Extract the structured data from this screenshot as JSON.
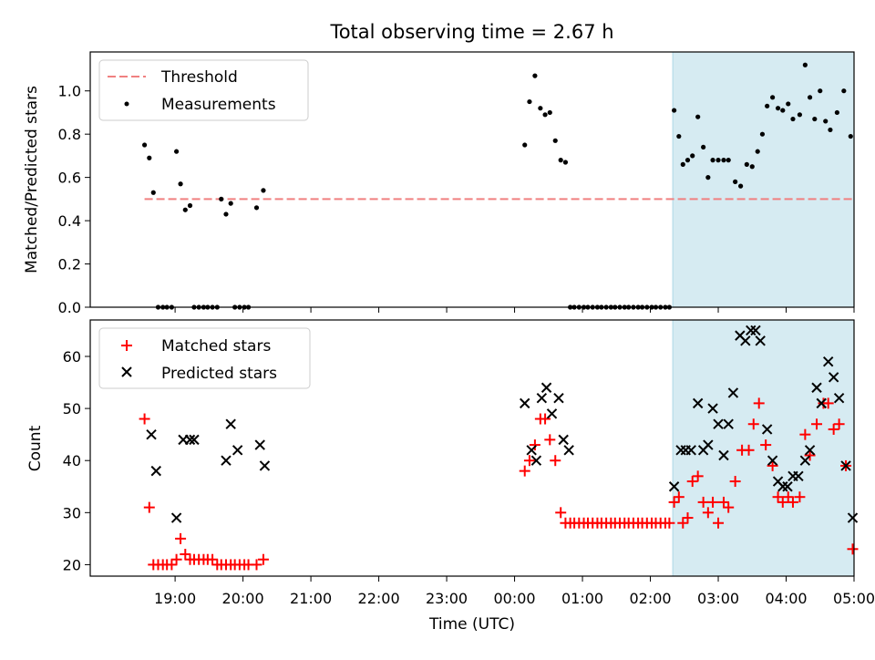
{
  "chart_data": {
    "title": "Total observing time = 2.67 h",
    "xlabel": "Time (UTC)",
    "x_unit": "hours since 18:00 UTC",
    "x_range": [
      17.75,
      29.0
    ],
    "x_ticks": [
      {
        "value": 19,
        "label": "19:00"
      },
      {
        "value": 20,
        "label": "20:00"
      },
      {
        "value": 21,
        "label": "21:00"
      },
      {
        "value": 22,
        "label": "22:00"
      },
      {
        "value": 23,
        "label": "23:00"
      },
      {
        "value": 24,
        "label": "00:00"
      },
      {
        "value": 25,
        "label": "01:00"
      },
      {
        "value": 26,
        "label": "02:00"
      },
      {
        "value": 27,
        "label": "03:00"
      },
      {
        "value": 28,
        "label": "04:00"
      },
      {
        "value": 29,
        "label": "05:00"
      }
    ],
    "shaded_interval": [
      26.33,
      29.0
    ],
    "shade_color": "#add8e6",
    "top": {
      "type": "scatter",
      "ylabel": "Matched/Predicted stars",
      "ylim": [
        0,
        1.18
      ],
      "y_ticks": [
        "0.0",
        "0.2",
        "0.4",
        "0.6",
        "0.8",
        "1.0"
      ],
      "legend": {
        "placement": "upper-left",
        "entries": [
          "Threshold",
          "Measurements"
        ]
      },
      "threshold": {
        "name": "Threshold",
        "value": 0.5,
        "x_start": 18.55,
        "x_end": 28.97,
        "color": "#f08080"
      },
      "measurements": {
        "name": "Measurements",
        "color": "#000000",
        "points": [
          [
            18.55,
            0.75
          ],
          [
            18.62,
            0.69
          ],
          [
            18.68,
            0.53
          ],
          [
            18.75,
            0
          ],
          [
            18.82,
            0
          ],
          [
            18.88,
            0
          ],
          [
            18.95,
            0
          ],
          [
            19.02,
            0.72
          ],
          [
            19.08,
            0.57
          ],
          [
            19.15,
            0.45
          ],
          [
            19.22,
            0.47
          ],
          [
            19.28,
            0
          ],
          [
            19.35,
            0
          ],
          [
            19.42,
            0
          ],
          [
            19.48,
            0
          ],
          [
            19.55,
            0
          ],
          [
            19.62,
            0
          ],
          [
            19.68,
            0.5
          ],
          [
            19.75,
            0.43
          ],
          [
            19.82,
            0.48
          ],
          [
            19.88,
            0
          ],
          [
            19.95,
            0
          ],
          [
            20.02,
            0
          ],
          [
            20.08,
            0
          ],
          [
            20.2,
            0.46
          ],
          [
            20.3,
            0.54
          ],
          [
            24.15,
            0.75
          ],
          [
            24.22,
            0.95
          ],
          [
            24.3,
            1.07
          ],
          [
            24.38,
            0.92
          ],
          [
            24.45,
            0.89
          ],
          [
            24.52,
            0.9
          ],
          [
            24.6,
            0.77
          ],
          [
            24.68,
            0.68
          ],
          [
            24.75,
            0.67
          ],
          [
            24.82,
            0
          ],
          [
            24.88,
            0
          ],
          [
            24.95,
            0
          ],
          [
            25.02,
            0
          ],
          [
            25.08,
            0
          ],
          [
            25.15,
            0
          ],
          [
            25.22,
            0
          ],
          [
            25.28,
            0
          ],
          [
            25.35,
            0
          ],
          [
            25.42,
            0
          ],
          [
            25.48,
            0
          ],
          [
            25.55,
            0
          ],
          [
            25.62,
            0
          ],
          [
            25.68,
            0
          ],
          [
            25.75,
            0
          ],
          [
            25.82,
            0
          ],
          [
            25.88,
            0
          ],
          [
            25.95,
            0
          ],
          [
            26.02,
            0
          ],
          [
            26.08,
            0
          ],
          [
            26.15,
            0
          ],
          [
            26.22,
            0
          ],
          [
            26.28,
            0
          ],
          [
            26.35,
            0.91
          ],
          [
            26.42,
            0.79
          ],
          [
            26.48,
            0.66
          ],
          [
            26.55,
            0.68
          ],
          [
            26.62,
            0.7
          ],
          [
            26.7,
            0.88
          ],
          [
            26.78,
            0.74
          ],
          [
            26.85,
            0.6
          ],
          [
            26.92,
            0.68
          ],
          [
            27.0,
            0.68
          ],
          [
            27.08,
            0.68
          ],
          [
            27.15,
            0.68
          ],
          [
            27.25,
            0.58
          ],
          [
            27.33,
            0.56
          ],
          [
            27.42,
            0.66
          ],
          [
            27.5,
            0.65
          ],
          [
            27.58,
            0.72
          ],
          [
            27.65,
            0.8
          ],
          [
            27.72,
            0.93
          ],
          [
            27.8,
            0.97
          ],
          [
            27.88,
            0.92
          ],
          [
            27.95,
            0.91
          ],
          [
            28.03,
            0.94
          ],
          [
            28.1,
            0.87
          ],
          [
            28.2,
            0.89
          ],
          [
            28.28,
            1.12
          ],
          [
            28.35,
            0.97
          ],
          [
            28.42,
            0.87
          ],
          [
            28.5,
            1.0
          ],
          [
            28.58,
            0.86
          ],
          [
            28.65,
            0.82
          ],
          [
            28.75,
            0.9
          ],
          [
            28.85,
            1.0
          ],
          [
            28.95,
            0.79
          ]
        ]
      }
    },
    "bottom": {
      "type": "scatter",
      "ylabel": "Count",
      "ylim": [
        17.8,
        67
      ],
      "y_ticks": [
        20,
        30,
        40,
        50,
        60
      ],
      "legend": {
        "placement": "upper-left",
        "entries": [
          "Matched stars",
          "Predicted stars"
        ]
      },
      "series": [
        {
          "name": "Matched stars",
          "marker": "plus",
          "color": "#ff0000",
          "points": [
            [
              18.55,
              48
            ],
            [
              18.62,
              31
            ],
            [
              18.68,
              20
            ],
            [
              18.75,
              20
            ],
            [
              18.82,
              20
            ],
            [
              18.88,
              20
            ],
            [
              18.95,
              20
            ],
            [
              19.02,
              21
            ],
            [
              19.08,
              25
            ],
            [
              19.15,
              22
            ],
            [
              19.22,
              21
            ],
            [
              19.28,
              21
            ],
            [
              19.35,
              21
            ],
            [
              19.42,
              21
            ],
            [
              19.48,
              21
            ],
            [
              19.55,
              21
            ],
            [
              19.62,
              20
            ],
            [
              19.68,
              20
            ],
            [
              19.75,
              20
            ],
            [
              19.82,
              20
            ],
            [
              19.88,
              20
            ],
            [
              19.95,
              20
            ],
            [
              20.02,
              20
            ],
            [
              20.08,
              20
            ],
            [
              20.2,
              20
            ],
            [
              20.3,
              21
            ],
            [
              24.15,
              38
            ],
            [
              24.22,
              40
            ],
            [
              24.3,
              43
            ],
            [
              24.38,
              48
            ],
            [
              24.45,
              48
            ],
            [
              24.52,
              44
            ],
            [
              24.6,
              40
            ],
            [
              24.68,
              30
            ],
            [
              24.75,
              28
            ],
            [
              24.82,
              28
            ],
            [
              24.88,
              28
            ],
            [
              24.95,
              28
            ],
            [
              25.02,
              28
            ],
            [
              25.08,
              28
            ],
            [
              25.15,
              28
            ],
            [
              25.22,
              28
            ],
            [
              25.28,
              28
            ],
            [
              25.35,
              28
            ],
            [
              25.42,
              28
            ],
            [
              25.48,
              28
            ],
            [
              25.55,
              28
            ],
            [
              25.62,
              28
            ],
            [
              25.68,
              28
            ],
            [
              25.75,
              28
            ],
            [
              25.82,
              28
            ],
            [
              25.88,
              28
            ],
            [
              25.95,
              28
            ],
            [
              26.02,
              28
            ],
            [
              26.08,
              28
            ],
            [
              26.15,
              28
            ],
            [
              26.22,
              28
            ],
            [
              26.28,
              28
            ],
            [
              26.35,
              32
            ],
            [
              26.42,
              33
            ],
            [
              26.48,
              28
            ],
            [
              26.55,
              29
            ],
            [
              26.62,
              36
            ],
            [
              26.7,
              37
            ],
            [
              26.78,
              32
            ],
            [
              26.85,
              30
            ],
            [
              26.92,
              32
            ],
            [
              27.0,
              28
            ],
            [
              27.08,
              32
            ],
            [
              27.15,
              31
            ],
            [
              27.25,
              36
            ],
            [
              27.35,
              42
            ],
            [
              27.45,
              42
            ],
            [
              27.52,
              47
            ],
            [
              27.6,
              51
            ],
            [
              27.7,
              43
            ],
            [
              27.8,
              39
            ],
            [
              27.88,
              33
            ],
            [
              27.95,
              32
            ],
            [
              28.03,
              33
            ],
            [
              28.1,
              32
            ],
            [
              28.2,
              33
            ],
            [
              28.28,
              45
            ],
            [
              28.35,
              41
            ],
            [
              28.45,
              47
            ],
            [
              28.55,
              51
            ],
            [
              28.62,
              51
            ],
            [
              28.7,
              46
            ],
            [
              28.78,
              47
            ],
            [
              28.88,
              39
            ],
            [
              28.98,
              23
            ]
          ]
        },
        {
          "name": "Predicted stars",
          "marker": "x",
          "color": "#000000",
          "points": [
            [
              18.65,
              45
            ],
            [
              18.72,
              38
            ],
            [
              19.02,
              29
            ],
            [
              19.12,
              44
            ],
            [
              19.22,
              44
            ],
            [
              19.28,
              44
            ],
            [
              19.75,
              40
            ],
            [
              19.82,
              47
            ],
            [
              19.92,
              42
            ],
            [
              20.25,
              43
            ],
            [
              20.32,
              39
            ],
            [
              24.15,
              51
            ],
            [
              24.25,
              42
            ],
            [
              24.32,
              40
            ],
            [
              24.4,
              52
            ],
            [
              24.47,
              54
            ],
            [
              24.55,
              49
            ],
            [
              24.65,
              52
            ],
            [
              24.72,
              44
            ],
            [
              24.8,
              42
            ],
            [
              26.35,
              35
            ],
            [
              26.45,
              42
            ],
            [
              26.52,
              42
            ],
            [
              26.6,
              42
            ],
            [
              26.7,
              51
            ],
            [
              26.78,
              42
            ],
            [
              26.85,
              43
            ],
            [
              26.92,
              50
            ],
            [
              27.0,
              47
            ],
            [
              27.08,
              41
            ],
            [
              27.15,
              47
            ],
            [
              27.22,
              53
            ],
            [
              27.32,
              64
            ],
            [
              27.4,
              63
            ],
            [
              27.48,
              65
            ],
            [
              27.55,
              65
            ],
            [
              27.62,
              63
            ],
            [
              27.72,
              46
            ],
            [
              27.8,
              40
            ],
            [
              27.88,
              36
            ],
            [
              27.95,
              35
            ],
            [
              28.02,
              35
            ],
            [
              28.1,
              37
            ],
            [
              28.18,
              37
            ],
            [
              28.28,
              40
            ],
            [
              28.35,
              42
            ],
            [
              28.45,
              54
            ],
            [
              28.52,
              51
            ],
            [
              28.62,
              59
            ],
            [
              28.7,
              56
            ],
            [
              28.78,
              52
            ],
            [
              28.88,
              39
            ],
            [
              28.98,
              29
            ]
          ]
        }
      ]
    }
  }
}
